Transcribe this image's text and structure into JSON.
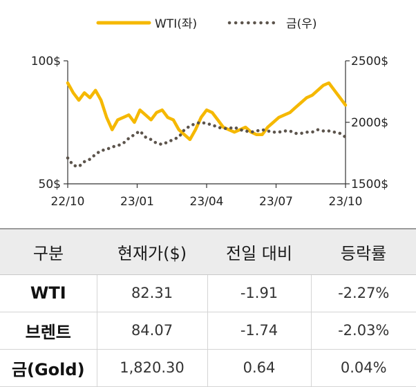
{
  "chart_data": {
    "type": "line",
    "x_tick_labels": [
      "22/10",
      "23/01",
      "23/04",
      "23/07",
      "23/10"
    ],
    "y_left": {
      "ticks": [
        "100$",
        "50$"
      ],
      "range": [
        50,
        100
      ]
    },
    "y_right": {
      "ticks": [
        "2500$",
        "2000$",
        "1500$"
      ],
      "range": [
        1500,
        2500
      ]
    },
    "legend": {
      "position": "top-center"
    },
    "series": [
      {
        "name": "WTI(좌)",
        "axis": "left",
        "style": "solid",
        "color": "#f5b800",
        "x": [
          0.0,
          0.02,
          0.04,
          0.06,
          0.08,
          0.1,
          0.12,
          0.14,
          0.16,
          0.18,
          0.2,
          0.22,
          0.24,
          0.26,
          0.28,
          0.3,
          0.32,
          0.34,
          0.36,
          0.38,
          0.4,
          0.42,
          0.44,
          0.46,
          0.48,
          0.5,
          0.52,
          0.54,
          0.56,
          0.58,
          0.6,
          0.62,
          0.64,
          0.66,
          0.68,
          0.7,
          0.72,
          0.74,
          0.76,
          0.78,
          0.8,
          0.82,
          0.84,
          0.86,
          0.88,
          0.9,
          0.92,
          0.94,
          0.96,
          0.98,
          1.0
        ],
        "values": [
          91,
          87,
          84,
          87,
          85,
          88,
          84,
          77,
          72,
          76,
          77,
          78,
          75,
          80,
          78,
          76,
          79,
          80,
          77,
          76,
          72,
          70,
          68,
          72,
          77,
          80,
          79,
          76,
          73,
          72,
          71,
          72,
          73,
          71,
          70,
          70,
          73,
          75,
          77,
          78,
          79,
          81,
          83,
          85,
          86,
          88,
          90,
          91,
          88,
          85,
          82
        ]
      },
      {
        "name": "금(우)",
        "axis": "right",
        "style": "dotted",
        "color": "#5c544c",
        "x": [
          0.0,
          0.02,
          0.04,
          0.06,
          0.08,
          0.1,
          0.12,
          0.14,
          0.16,
          0.18,
          0.2,
          0.22,
          0.24,
          0.26,
          0.28,
          0.3,
          0.32,
          0.34,
          0.36,
          0.38,
          0.4,
          0.42,
          0.44,
          0.46,
          0.48,
          0.5,
          0.52,
          0.54,
          0.56,
          0.58,
          0.6,
          0.62,
          0.64,
          0.66,
          0.68,
          0.7,
          0.72,
          0.74,
          0.76,
          0.78,
          0.8,
          0.82,
          0.84,
          0.86,
          0.88,
          0.9,
          0.92,
          0.94,
          0.96,
          0.98,
          1.0
        ],
        "values": [
          1710,
          1650,
          1640,
          1680,
          1700,
          1740,
          1770,
          1780,
          1800,
          1810,
          1830,
          1870,
          1900,
          1930,
          1880,
          1860,
          1830,
          1820,
          1840,
          1860,
          1880,
          1940,
          1970,
          1990,
          2000,
          1990,
          1980,
          1960,
          1950,
          1950,
          1960,
          1940,
          1930,
          1920,
          1930,
          1940,
          1930,
          1920,
          1920,
          1930,
          1930,
          1910,
          1910,
          1920,
          1920,
          1940,
          1930,
          1930,
          1920,
          1910,
          1880
        ]
      }
    ]
  },
  "table": {
    "headers": [
      "구분",
      "현재가($)",
      "전일 대비",
      "등락률"
    ],
    "rows": [
      {
        "name": "WTI",
        "price": "82.31",
        "change": "-1.91",
        "pct": "-2.27%"
      },
      {
        "name": "브렌트",
        "price": "84.07",
        "change": "-1.74",
        "pct": "-2.03%"
      },
      {
        "name": "금(Gold)",
        "price": "1,820.30",
        "change": "0.64",
        "pct": "0.04%"
      }
    ]
  }
}
